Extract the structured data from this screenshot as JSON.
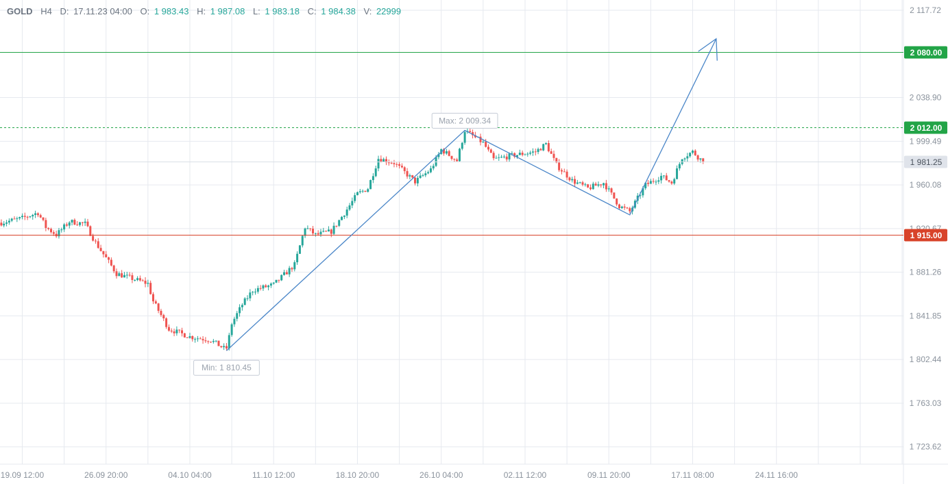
{
  "header": {
    "symbol": "GOLD",
    "timeframe": "H4",
    "date_label": "D:",
    "date": "17.11.23 04:00",
    "open_label": "O:",
    "open": "1 983.43",
    "high_label": "H:",
    "high": "1 987.08",
    "low_label": "L:",
    "low": "1 983.18",
    "close_label": "C:",
    "close": "1 984.38",
    "volume_label": "V:",
    "volume": "22999"
  },
  "colors": {
    "up": "#26a69a",
    "down": "#ef5350",
    "resistance": "#22a447",
    "support": "#d8432a",
    "trend": "#4a86c8",
    "grid": "#e6e9ef",
    "axis_text": "#8a929c",
    "current_price_bg": "#dfe3ea"
  },
  "chart_data": {
    "type": "candlestick",
    "timeframe": "H4",
    "title": "",
    "xlabel": "",
    "ylabel": "",
    "ylim": [
      1708,
      2127
    ],
    "y_ticks": [
      {
        "value": 2117.72,
        "label": "2 117.72"
      },
      {
        "value": 2038.9,
        "label": "2 038.90"
      },
      {
        "value": 1999.49,
        "label": "1 999.49"
      },
      {
        "value": 1960.08,
        "label": "1 960.08"
      },
      {
        "value": 1920.67,
        "label": "1 920.67"
      },
      {
        "value": 1881.26,
        "label": "1 881.26"
      },
      {
        "value": 1841.85,
        "label": "1 841.85"
      },
      {
        "value": 1802.44,
        "label": "1 802.44"
      },
      {
        "value": 1763.03,
        "label": "1 763.03"
      },
      {
        "value": 1723.62,
        "label": "1 723.62"
      }
    ],
    "x_ticks": [
      {
        "bar": 8,
        "label": "19.09 12:00"
      },
      {
        "bar": 40,
        "label": "26.09 20:00"
      },
      {
        "bar": 72,
        "label": "04.10 04:00"
      },
      {
        "bar": 104,
        "label": "11.10 12:00"
      },
      {
        "bar": 136,
        "label": "18.10 20:00"
      },
      {
        "bar": 168,
        "label": "26.10 04:00"
      },
      {
        "bar": 200,
        "label": "02.11 12:00"
      },
      {
        "bar": 232,
        "label": "09.11 20:00"
      },
      {
        "bar": 264,
        "label": "17.11 08:00"
      },
      {
        "bar": 296,
        "label": "24.11 16:00"
      }
    ],
    "bar_count_visible": 345,
    "anchors": [
      {
        "bar": 0,
        "price": 1926
      },
      {
        "bar": 8,
        "price": 1930
      },
      {
        "bar": 14,
        "price": 1935
      },
      {
        "bar": 17,
        "price": 1922
      },
      {
        "bar": 21,
        "price": 1915
      },
      {
        "bar": 26,
        "price": 1927
      },
      {
        "bar": 32,
        "price": 1925
      },
      {
        "bar": 36,
        "price": 1908
      },
      {
        "bar": 44,
        "price": 1880
      },
      {
        "bar": 52,
        "price": 1874
      },
      {
        "bar": 56,
        "price": 1871
      },
      {
        "bar": 58,
        "price": 1855
      },
      {
        "bar": 64,
        "price": 1830
      },
      {
        "bar": 72,
        "price": 1823
      },
      {
        "bar": 80,
        "price": 1820
      },
      {
        "bar": 86,
        "price": 1811
      },
      {
        "bar": 88,
        "price": 1835
      },
      {
        "bar": 92,
        "price": 1852
      },
      {
        "bar": 96,
        "price": 1865
      },
      {
        "bar": 104,
        "price": 1870
      },
      {
        "bar": 112,
        "price": 1888
      },
      {
        "bar": 116,
        "price": 1922
      },
      {
        "bar": 120,
        "price": 1915
      },
      {
        "bar": 126,
        "price": 1918
      },
      {
        "bar": 132,
        "price": 1938
      },
      {
        "bar": 136,
        "price": 1952
      },
      {
        "bar": 140,
        "price": 1957
      },
      {
        "bar": 144,
        "price": 1984
      },
      {
        "bar": 150,
        "price": 1980
      },
      {
        "bar": 158,
        "price": 1963
      },
      {
        "bar": 164,
        "price": 1974
      },
      {
        "bar": 168,
        "price": 1992
      },
      {
        "bar": 174,
        "price": 1982
      },
      {
        "bar": 177,
        "price": 2009
      },
      {
        "bar": 184,
        "price": 1998
      },
      {
        "bar": 188,
        "price": 1983
      },
      {
        "bar": 196,
        "price": 1987
      },
      {
        "bar": 204,
        "price": 1990
      },
      {
        "bar": 208,
        "price": 1997
      },
      {
        "bar": 212,
        "price": 1978
      },
      {
        "bar": 218,
        "price": 1964
      },
      {
        "bar": 224,
        "price": 1957
      },
      {
        "bar": 230,
        "price": 1962
      },
      {
        "bar": 236,
        "price": 1941
      },
      {
        "bar": 240,
        "price": 1936
      },
      {
        "bar": 246,
        "price": 1960
      },
      {
        "bar": 252,
        "price": 1968
      },
      {
        "bar": 256,
        "price": 1962
      },
      {
        "bar": 260,
        "price": 1985
      },
      {
        "bar": 264,
        "price": 1990
      },
      {
        "bar": 268,
        "price": 1981
      }
    ],
    "last_bar": 268,
    "current_price": 1981.25,
    "current_price_label": "1 981.25",
    "annotations": {
      "max_label": "Max: 2 009.34",
      "max_price": 2009.34,
      "max_bar": 177,
      "min_label": "Min: 1 810.45",
      "min_price": 1810.45,
      "min_bar": 86,
      "levels": [
        {
          "price": 2080.0,
          "label": "2 080.00",
          "style": "solid",
          "color": "resistance"
        },
        {
          "price": 2012.0,
          "label": "2 012.00",
          "style": "dashed",
          "color": "resistance"
        },
        {
          "price": 1915.0,
          "label": "1 915.00",
          "style": "solid",
          "color": "support"
        }
      ],
      "trend_path": [
        {
          "bar": 86,
          "price": 1810.45
        },
        {
          "bar": 177,
          "price": 2009.34
        },
        {
          "bar": 240,
          "price": 1933
        },
        {
          "bar": 273,
          "price": 2092
        }
      ]
    }
  }
}
